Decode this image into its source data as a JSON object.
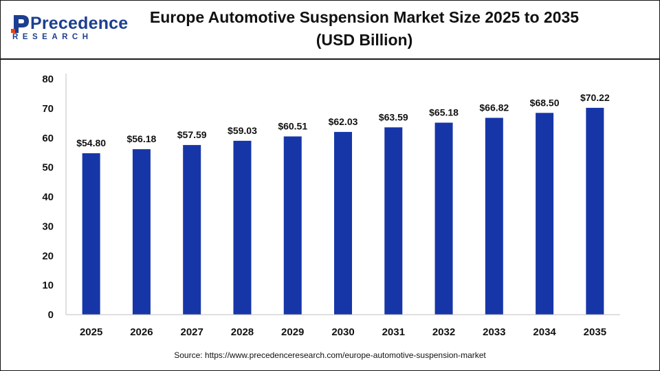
{
  "brand": {
    "name": "Precedence",
    "sub": "RESEARCH",
    "color": "#1c3f8f"
  },
  "header": {
    "title_line1": "Europe Automotive Suspension Market Size 2025 to 2035",
    "title_line2": "(USD Billion)"
  },
  "source": "Source: https://www.precedenceresearch.com/europe-automotive-suspension-market",
  "chart_data": {
    "type": "bar",
    "categories": [
      "2025",
      "2026",
      "2027",
      "2028",
      "2029",
      "2030",
      "2031",
      "2032",
      "2033",
      "2034",
      "2035"
    ],
    "values": [
      54.8,
      56.18,
      57.59,
      59.03,
      60.51,
      62.03,
      63.59,
      65.18,
      66.82,
      68.5,
      70.22
    ],
    "data_labels": [
      "$54.80",
      "$56.18",
      "$57.59",
      "$59.03",
      "$60.51",
      "$62.03",
      "$63.59",
      "$65.18",
      "$66.82",
      "$68.50",
      "$70.22"
    ],
    "title": "Europe Automotive Suspension Market Size 2025 to 2035 (USD Billion)",
    "xlabel": "",
    "ylabel": "",
    "ylim": [
      0,
      80
    ],
    "yticks": [
      0,
      10,
      20,
      30,
      40,
      50,
      60,
      70,
      80
    ],
    "grid": false,
    "legend": "none",
    "bar_color": "#1636a8"
  }
}
